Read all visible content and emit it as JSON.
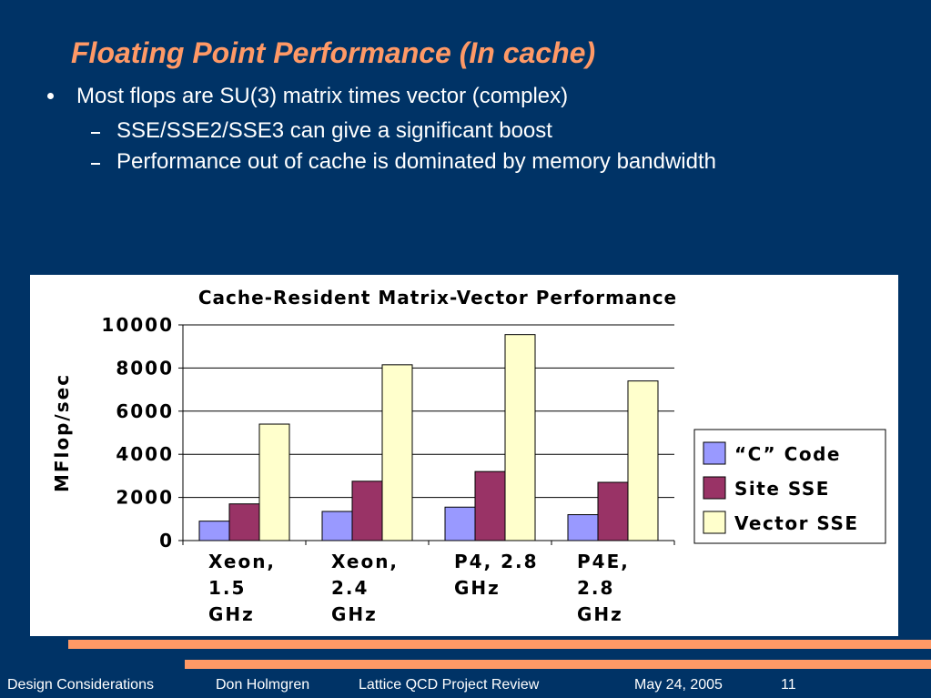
{
  "slide": {
    "title": "Floating Point Performance (In cache)",
    "bullets": [
      "Most flops are SU(3) matrix times vector (complex)"
    ],
    "sub_bullets": [
      "SSE/SSE2/SSE3 can give a significant boost",
      "Performance out of cache is dominated by memory bandwidth"
    ]
  },
  "footer": {
    "section": "Design Considerations",
    "author": "Don Holmgren",
    "event": "Lattice QCD Project Review",
    "date": "May 24, 2005",
    "page": "11"
  },
  "colors": {
    "background": "#003366",
    "title": "#ff9966",
    "accent_rule": "#ff9966"
  },
  "chart_data": {
    "type": "bar",
    "title": "Cache-Resident Matrix-Vector Performance",
    "ylabel": "MFlop/sec",
    "xlabel": "",
    "ylim": [
      0,
      10000
    ],
    "yticks": [
      0,
      2000,
      4000,
      6000,
      8000,
      10000
    ],
    "ytick_labels": [
      "0",
      "2000",
      "4000",
      "6000",
      "8000",
      "10000"
    ],
    "categories": [
      [
        "Xeon,",
        "1.5",
        "GHz"
      ],
      [
        "Xeon,",
        "2.4",
        "GHz"
      ],
      [
        "P4, 2.8",
        "GHz"
      ],
      [
        "P4E,",
        "2.8",
        "GHz"
      ]
    ],
    "series": [
      {
        "name": "“C” Code",
        "color": "#9999ff",
        "values": [
          900,
          1350,
          1550,
          1200
        ]
      },
      {
        "name": "Site SSE",
        "color": "#993366",
        "values": [
          1700,
          2750,
          3200,
          2700
        ]
      },
      {
        "name": "Vector SSE",
        "color": "#ffffcc",
        "values": [
          5400,
          8150,
          9550,
          7400
        ]
      }
    ],
    "grid": true,
    "legend": "right"
  }
}
